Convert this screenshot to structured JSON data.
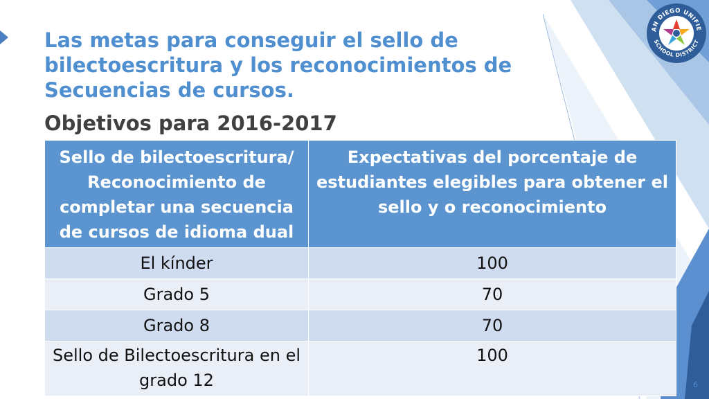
{
  "title": "Las metas para conseguir el sello de bilectoescritura y los reconocimientos de Secuencias de cursos.",
  "subtitle": "Objetivos para 2016-2017",
  "table": {
    "headers": [
      "Sello de bilectoescritura/ Reconocimiento de completar una secuencia de cursos de idioma dual",
      "Expectativas del porcentaje de estudiantes elegibles para obtener el sello y o reconocimiento"
    ],
    "rows": [
      [
        "El kínder",
        "100"
      ],
      [
        "Grado 5",
        "70"
      ],
      [
        "Grado 8",
        "70"
      ],
      [
        "Sello de Bilectoescritura en el grado 12",
        "100"
      ]
    ]
  },
  "logo": {
    "top_text": "SAN DIEGO UNIFIED",
    "bottom_text": "SCHOOL DISTRICT",
    "icon": "star-burst-logo-icon"
  },
  "page_number": "6",
  "colors": {
    "title": "#4f8fd0",
    "header_bg": "#5b94cf",
    "row_odd": "#cfdbef",
    "row_even": "#e9eef7",
    "logo_blue": "#2f5d99"
  }
}
